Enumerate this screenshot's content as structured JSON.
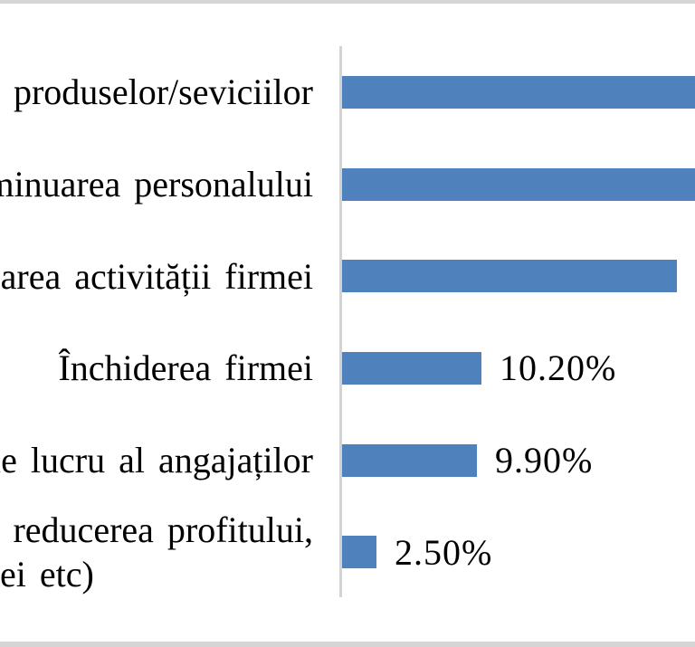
{
  "chart_data": {
    "type": "bar",
    "orientation": "horizontal",
    "title": "",
    "categories": [
      "produselor/seviciilor",
      "minuarea personalului",
      "area activității firmei",
      "Închiderea firmei",
      "le lucru al angajaților",
      "reducerea profitului, ei etc)"
    ],
    "values": [
      null,
      null,
      24.5,
      10.2,
      9.9,
      2.5
    ],
    "data_labels": [
      "",
      "",
      "",
      "10.20%",
      "9.90%",
      "2.50%"
    ],
    "xlabel": "",
    "ylabel": "",
    "value_axis_visible": false,
    "grid": false,
    "legend": "none",
    "notes": "Screenshot is cropped: category labels are cut off at the left edge; the first two bars run past the right image edge so their values/data labels are not visible (>≈25.9%); bar 3 has no visible data label, its length implies ≈24.5%."
  },
  "display": {
    "category_lines": [
      [
        "produselor/seviciilor"
      ],
      [
        "minuarea personalului"
      ],
      [
        "area activității firmei"
      ],
      [
        "Închiderea firmei"
      ],
      [
        "le lucru al angajaților"
      ],
      [
        "reducerea profitului,",
        "ei etc)"
      ]
    ],
    "bar_clipped": [
      true,
      true,
      false,
      false,
      false,
      false
    ]
  },
  "colors": {
    "bar": "#4f81bd",
    "axis_line": "#d3d3d3",
    "frame_edge": "#d5d5d5",
    "text": "#000000",
    "background": "#ffffff"
  }
}
